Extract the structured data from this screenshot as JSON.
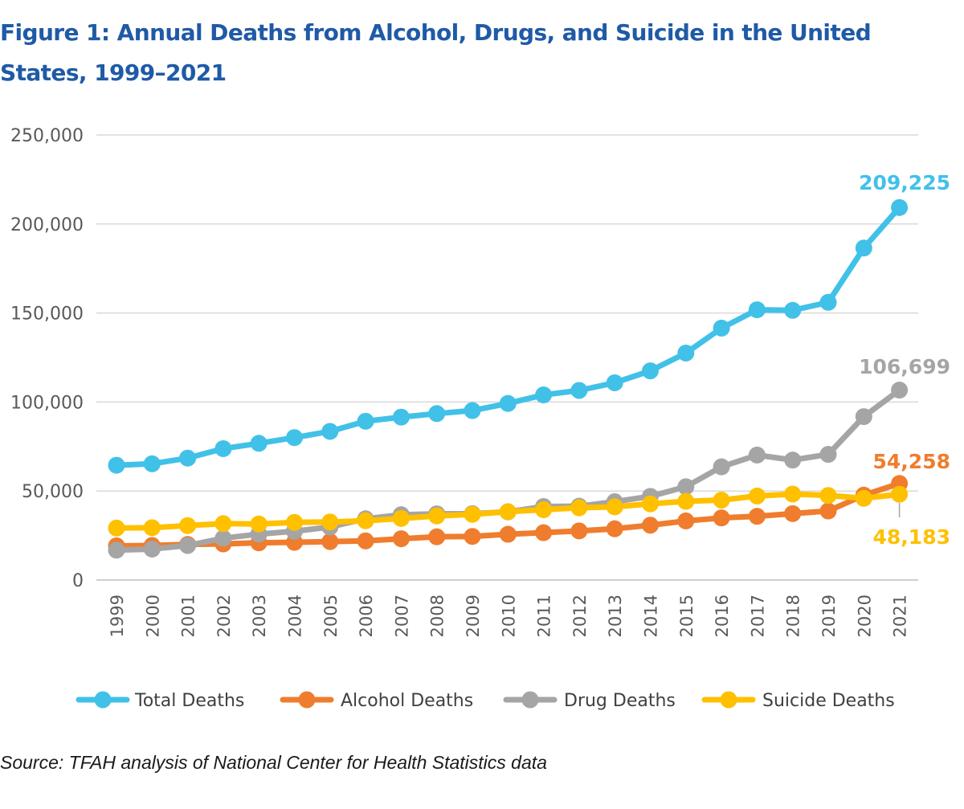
{
  "title": "Figure 1: Annual Deaths from Alcohol, Drugs, and Suicide in the United States, 1999–2021",
  "source": "Source: TFAH analysis of National Center for Health Statistics data",
  "chart_data": {
    "type": "line",
    "title": "Figure 1: Annual Deaths from Alcohol, Drugs, and Suicide in the United States, 1999–2021",
    "xlabel": "",
    "ylabel": "",
    "ylim": [
      0,
      250000
    ],
    "yticks": [
      0,
      50000,
      100000,
      150000,
      200000,
      250000
    ],
    "ytick_labels": [
      "0",
      "50,000",
      "100,000",
      "150,000",
      "200,000",
      "250,000"
    ],
    "grid": true,
    "legend_position": "bottom",
    "categories": [
      "1999",
      "2000",
      "2001",
      "2002",
      "2003",
      "2004",
      "2005",
      "2006",
      "2007",
      "2008",
      "2009",
      "2010",
      "2011",
      "2012",
      "2013",
      "2014",
      "2015",
      "2016",
      "2017",
      "2018",
      "2019",
      "2020",
      "2021"
    ],
    "series": [
      {
        "name": "Total Deaths",
        "color": "#41c1e8",
        "values": [
          64500,
          65300,
          68500,
          73800,
          76800,
          80000,
          83500,
          89200,
          91500,
          93500,
          95200,
          99200,
          104000,
          106500,
          110800,
          117500,
          127500,
          141500,
          151800,
          151500,
          156000,
          186500,
          209225
        ],
        "end_label": "209,225"
      },
      {
        "name": "Alcohol Deaths",
        "color": "#ef7d2d",
        "values": [
          19200,
          19400,
          20000,
          20300,
          20900,
          21200,
          21600,
          22000,
          23200,
          24300,
          24500,
          25700,
          26600,
          27600,
          28800,
          30800,
          33200,
          34900,
          35800,
          37300,
          38800,
          47700,
          54258
        ],
        "end_label": "54,258"
      },
      {
        "name": "Drug Deaths",
        "color": "#a5a5a5",
        "values": [
          16800,
          17400,
          19400,
          23500,
          25800,
          27400,
          29800,
          34400,
          36700,
          37200,
          37300,
          38300,
          41300,
          41500,
          44000,
          47000,
          52400,
          63600,
          70200,
          67400,
          70600,
          91800,
          106699
        ],
        "end_label": "106,699"
      },
      {
        "name": "Suicide Deaths",
        "color": "#ffc000",
        "values": [
          29200,
          29400,
          30600,
          31700,
          31500,
          32400,
          32600,
          33300,
          34600,
          36000,
          36900,
          38400,
          39500,
          40600,
          41100,
          42800,
          44200,
          44900,
          47200,
          48300,
          47500,
          45900,
          48183
        ],
        "end_label": "48,183"
      }
    ]
  }
}
